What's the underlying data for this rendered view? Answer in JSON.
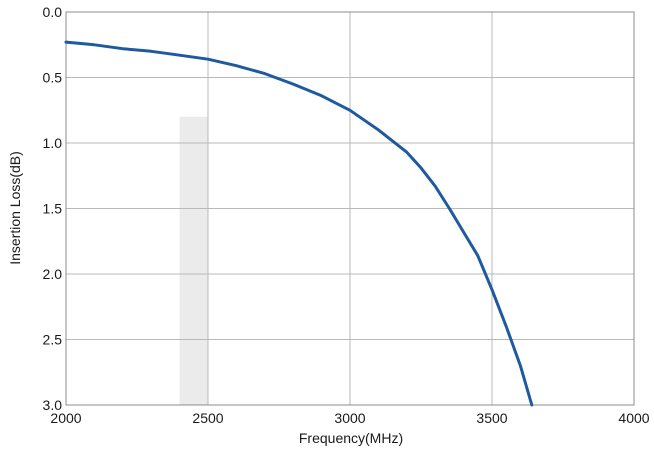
{
  "chart_data": {
    "type": "line",
    "title": "",
    "xlabel": "Frequency(MHz)",
    "ylabel": "Insertion Loss(dB)",
    "xlim": [
      2000,
      4000
    ],
    "ylim": [
      0.0,
      3.0
    ],
    "y_inverted": true,
    "grid": true,
    "x_ticks": [
      2000,
      2500,
      3000,
      3500,
      4000
    ],
    "x_tick_labels": [
      "2000",
      "2500",
      "3000",
      "3500",
      "4000"
    ],
    "y_ticks": [
      0.0,
      0.5,
      1.0,
      1.5,
      2.0,
      2.5,
      3.0
    ],
    "y_tick_labels": [
      "0.0",
      "0.5",
      "1.0",
      "1.5",
      "2.0",
      "2.5",
      "3.0"
    ],
    "highlight_band": {
      "x_range": [
        2400,
        2500
      ],
      "y_range": [
        0.8,
        3.0
      ],
      "color": "#ebebeb"
    },
    "series": [
      {
        "color": "#1f5a9e",
        "x": [
          2000,
          2100,
          2200,
          2300,
          2400,
          2500,
          2600,
          2700,
          2800,
          2900,
          3000,
          3100,
          3200,
          3250,
          3300,
          3350,
          3400,
          3450,
          3500,
          3550,
          3600,
          3640
        ],
        "y": [
          0.23,
          0.25,
          0.28,
          0.3,
          0.33,
          0.36,
          0.41,
          0.47,
          0.55,
          0.64,
          0.75,
          0.9,
          1.07,
          1.19,
          1.33,
          1.5,
          1.68,
          1.86,
          2.12,
          2.4,
          2.7,
          3.0
        ]
      }
    ]
  }
}
